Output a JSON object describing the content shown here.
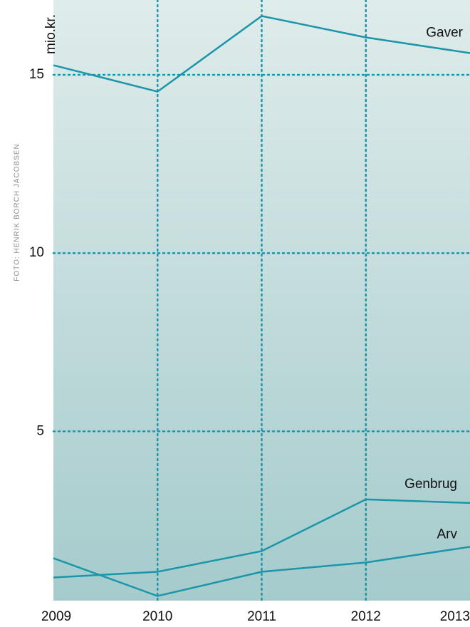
{
  "chart_data": {
    "type": "line",
    "y_label": "mio.kr.",
    "photo_credit": "FOTO: HENRIK BORCH JACOBSEN",
    "x": [
      2009,
      2010,
      2011,
      2012,
      2013
    ],
    "xlim": [
      2009,
      2013
    ],
    "xticks": [
      2009,
      2010,
      2011,
      2012,
      2013
    ],
    "ylim": [
      0.25,
      17.1
    ],
    "yticks": [
      5,
      10,
      15
    ],
    "grid": true,
    "series": [
      {
        "name": "Gaver",
        "color": "#1a96a8",
        "values": [
          15.27,
          14.53,
          16.65,
          16.05,
          15.61
        ]
      },
      {
        "name": "Genbrug",
        "color": "#1a96a8",
        "values": [
          0.9,
          1.06,
          1.64,
          3.09,
          2.99
        ]
      },
      {
        "name": "Arv",
        "color": "#1a96a8",
        "values": [
          1.44,
          0.38,
          1.06,
          1.32,
          1.76
        ]
      }
    ]
  }
}
